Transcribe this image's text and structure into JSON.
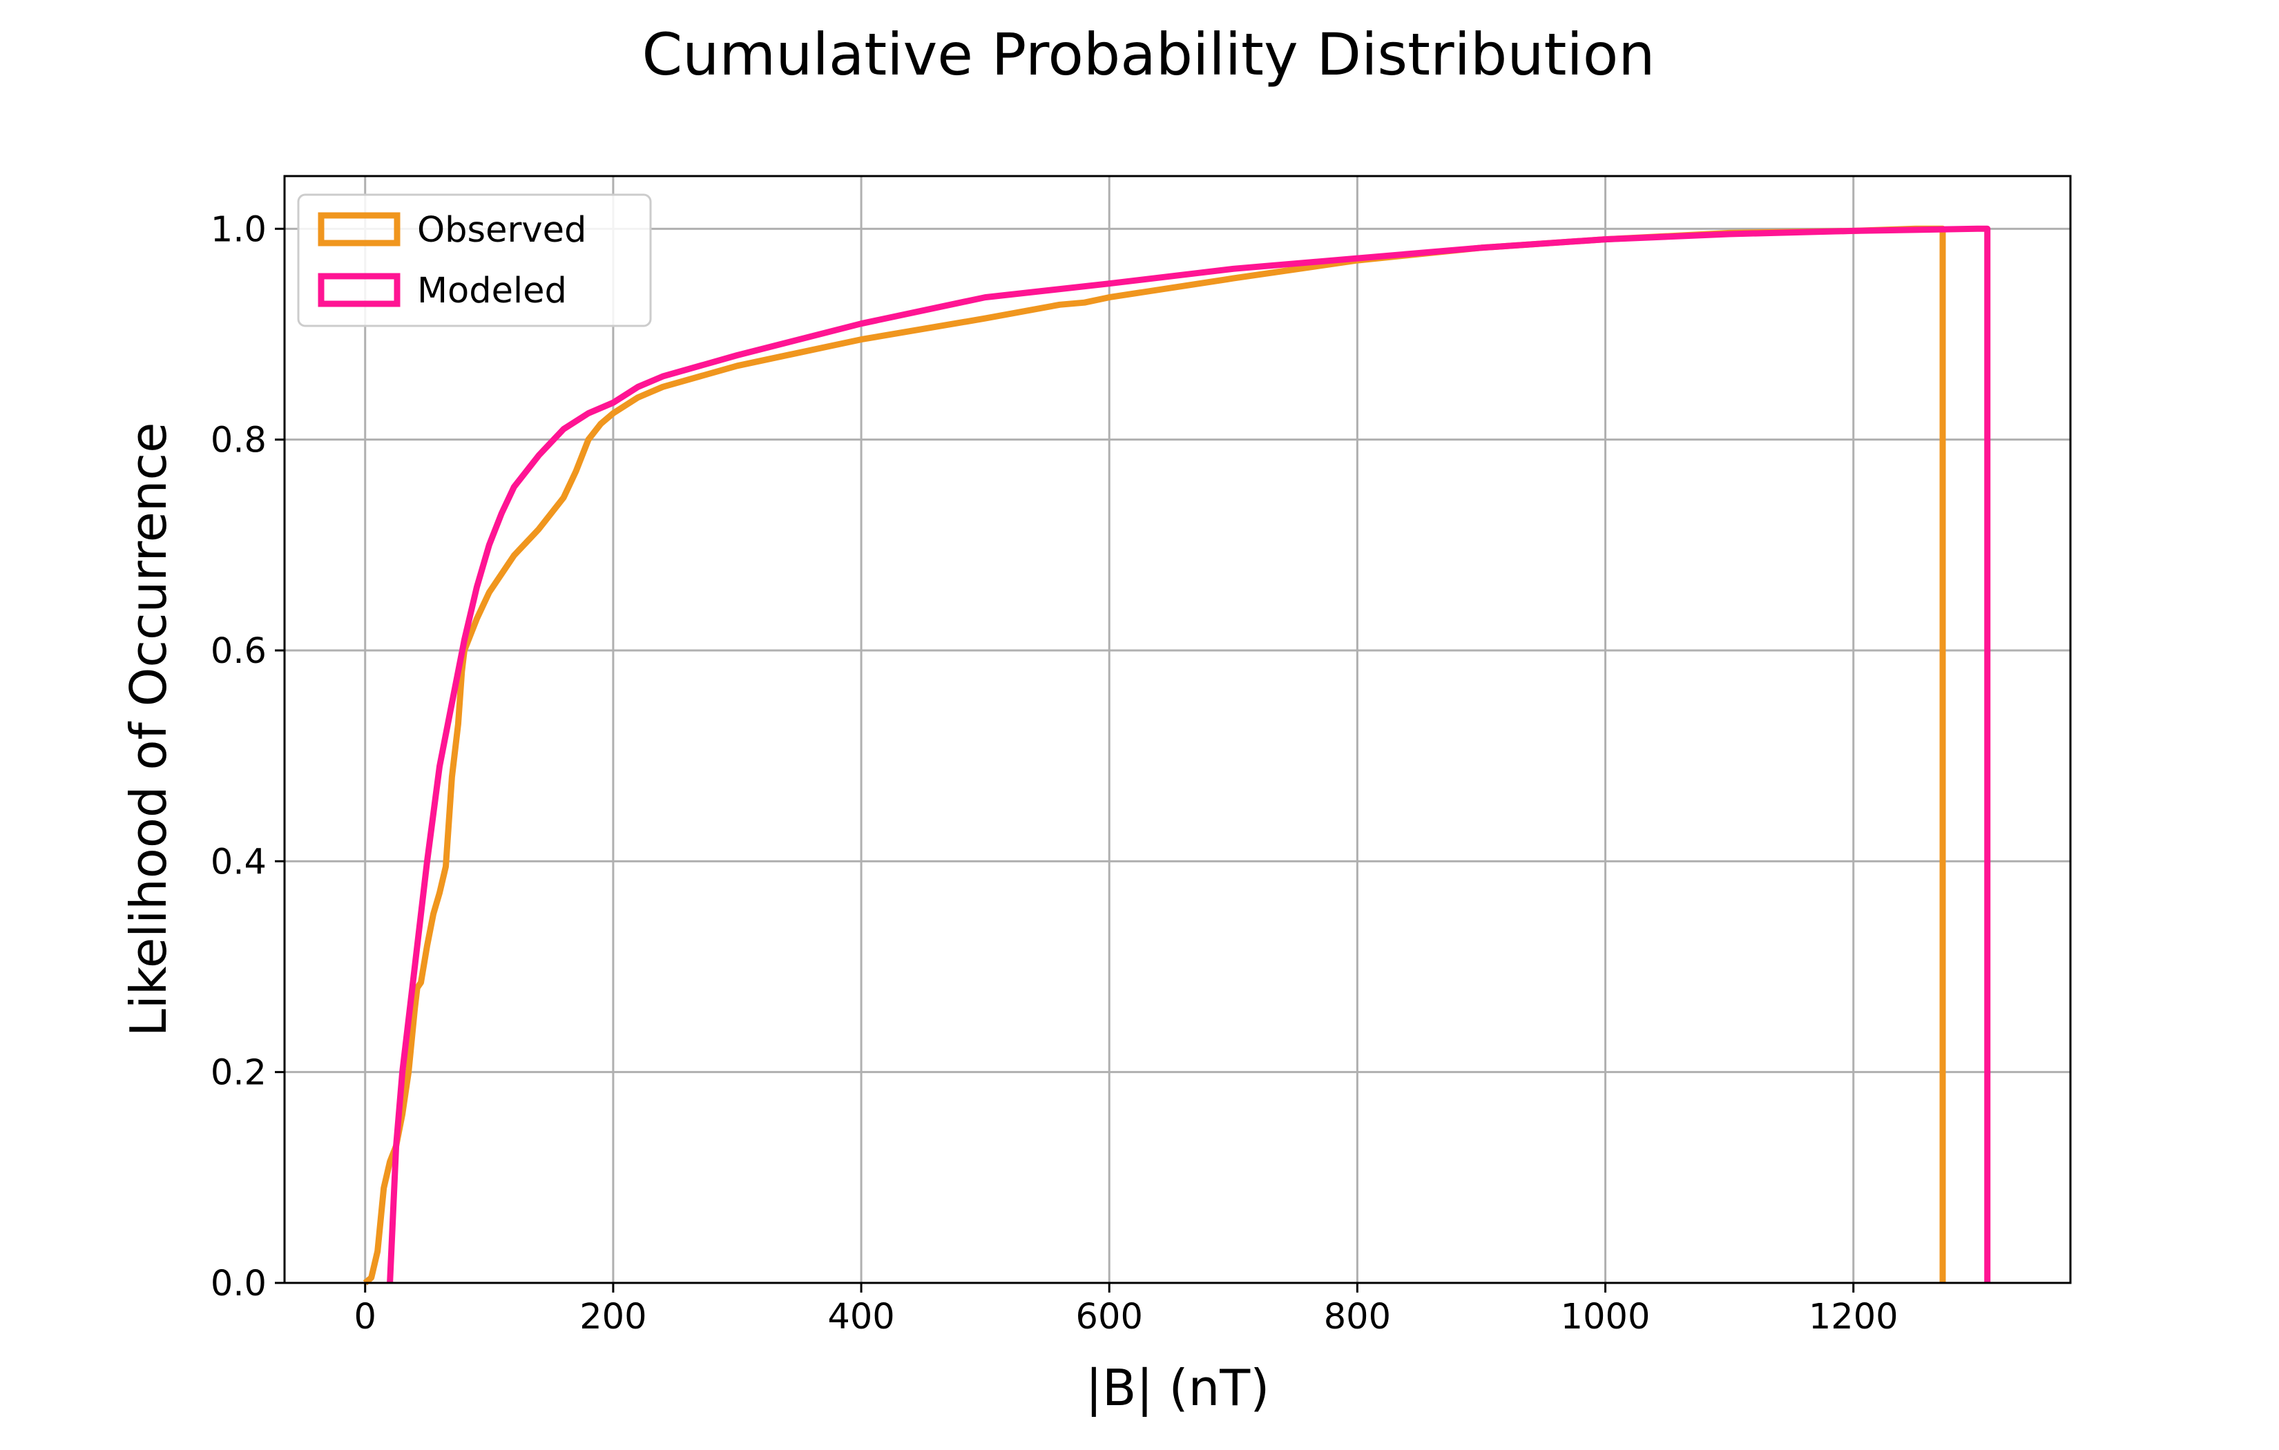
{
  "chart_data": {
    "type": "line",
    "title": "Cumulative Probability Distribution",
    "xlabel": "|B| (nT)",
    "ylabel": "Likelihood of Occurrence",
    "xlim": [
      -65,
      1375
    ],
    "ylim": [
      0,
      1.05
    ],
    "xticks": [
      0,
      200,
      400,
      600,
      800,
      1000,
      1200
    ],
    "yticks": [
      0.0,
      0.2,
      0.4,
      0.6,
      0.8,
      1.0
    ],
    "xtick_labels": [
      "0",
      "200",
      "400",
      "600",
      "800",
      "1000",
      "1200"
    ],
    "ytick_labels": [
      "0.0",
      "0.2",
      "0.4",
      "0.6",
      "0.8",
      "1.0"
    ],
    "grid": true,
    "legend_position": "top-left",
    "series": [
      {
        "name": "Observed",
        "color": "#f0961e",
        "x": [
          0,
          5,
          10,
          15,
          20,
          25,
          30,
          35,
          40,
          42,
          45,
          50,
          55,
          60,
          65,
          70,
          72,
          75,
          78,
          80,
          90,
          100,
          120,
          140,
          160,
          170,
          180,
          190,
          200,
          220,
          240,
          300,
          400,
          500,
          560,
          580,
          600,
          700,
          800,
          900,
          1000,
          1100,
          1200,
          1250,
          1272,
          1272
        ],
        "y": [
          0.0,
          0.005,
          0.03,
          0.09,
          0.115,
          0.13,
          0.16,
          0.2,
          0.26,
          0.28,
          0.285,
          0.32,
          0.35,
          0.37,
          0.395,
          0.48,
          0.5,
          0.53,
          0.58,
          0.6,
          0.63,
          0.655,
          0.69,
          0.715,
          0.745,
          0.77,
          0.8,
          0.815,
          0.825,
          0.84,
          0.85,
          0.87,
          0.895,
          0.915,
          0.928,
          0.93,
          0.935,
          0.953,
          0.97,
          0.982,
          0.99,
          0.996,
          0.998,
          1.0,
          1.0,
          0.0
        ]
      },
      {
        "name": "Modeled",
        "color": "#ff1493",
        "x": [
          20,
          25,
          30,
          40,
          50,
          60,
          70,
          80,
          90,
          100,
          110,
          120,
          140,
          160,
          180,
          200,
          220,
          240,
          300,
          400,
          480,
          500,
          600,
          700,
          800,
          900,
          1000,
          1100,
          1200,
          1250,
          1300,
          1308,
          1308
        ],
        "y": [
          0.0,
          0.13,
          0.2,
          0.3,
          0.4,
          0.49,
          0.55,
          0.61,
          0.66,
          0.7,
          0.73,
          0.755,
          0.785,
          0.81,
          0.825,
          0.835,
          0.85,
          0.86,
          0.88,
          0.91,
          0.93,
          0.935,
          0.948,
          0.962,
          0.972,
          0.982,
          0.99,
          0.995,
          0.998,
          0.999,
          1.0,
          1.0,
          0.0
        ]
      }
    ]
  }
}
